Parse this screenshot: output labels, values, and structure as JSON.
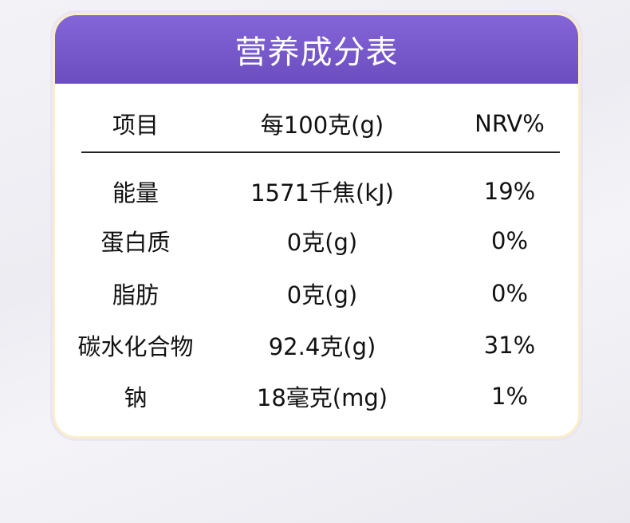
{
  "title": "营养成分表",
  "columns": [
    "项目",
    "每100克(g)",
    "NRV%"
  ],
  "rows": [
    [
      "能量",
      "1571千焦(kJ)",
      "19%"
    ],
    [
      "蛋白质",
      "0克(g)",
      "0%"
    ],
    [
      "脂肪",
      "0克(g)",
      "0%"
    ],
    [
      "碳水化合物",
      "92.4克(g)",
      "31%"
    ],
    [
      "钠",
      "18毫克(mg)",
      "1%"
    ]
  ],
  "colors": {
    "header": "#7559cc",
    "border": "#fbeec9"
  }
}
